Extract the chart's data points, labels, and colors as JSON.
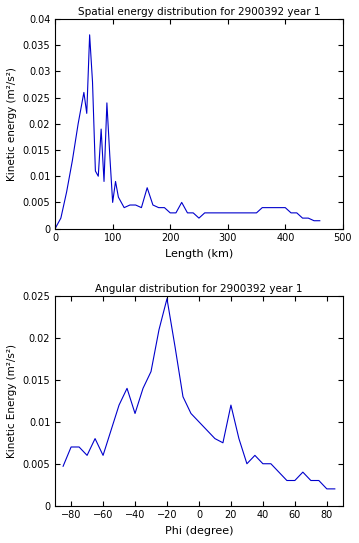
{
  "title1": "Spatial energy distribution for 2900392 year 1",
  "title2": "Angular distribution for 2900392 year 1",
  "xlabel1": "Length (km)",
  "ylabel1": "Kinetic energy (m²/s²)",
  "xlabel2": "Phi (degree)",
  "ylabel2": "Kinetic Energy (m²/s²)",
  "spatial_x": [
    0,
    10,
    20,
    30,
    40,
    50,
    55,
    60,
    65,
    70,
    75,
    80,
    85,
    90,
    95,
    100,
    105,
    110,
    115,
    120,
    130,
    140,
    150,
    160,
    170,
    180,
    190,
    200,
    210,
    220,
    230,
    240,
    250,
    260,
    270,
    280,
    290,
    300,
    310,
    320,
    330,
    340,
    350,
    360,
    370,
    380,
    390,
    400,
    410,
    420,
    430,
    440,
    450,
    460
  ],
  "spatial_y": [
    0.0,
    0.002,
    0.007,
    0.013,
    0.02,
    0.026,
    0.022,
    0.037,
    0.028,
    0.011,
    0.01,
    0.019,
    0.009,
    0.024,
    0.014,
    0.005,
    0.009,
    0.006,
    0.005,
    0.004,
    0.0045,
    0.0045,
    0.004,
    0.0078,
    0.0045,
    0.004,
    0.004,
    0.003,
    0.003,
    0.005,
    0.003,
    0.003,
    0.002,
    0.003,
    0.003,
    0.003,
    0.003,
    0.003,
    0.003,
    0.003,
    0.003,
    0.003,
    0.003,
    0.004,
    0.004,
    0.004,
    0.004,
    0.004,
    0.003,
    0.003,
    0.002,
    0.002,
    0.0015,
    0.0015
  ],
  "angular_x": [
    -85,
    -80,
    -75,
    -70,
    -65,
    -60,
    -55,
    -50,
    -45,
    -40,
    -35,
    -30,
    -25,
    -20,
    -15,
    -10,
    -5,
    0,
    5,
    10,
    15,
    20,
    25,
    30,
    35,
    40,
    45,
    50,
    55,
    60,
    65,
    70,
    75,
    80,
    85
  ],
  "angular_y": [
    0.0047,
    0.007,
    0.007,
    0.006,
    0.008,
    0.006,
    0.009,
    0.012,
    0.014,
    0.011,
    0.014,
    0.016,
    0.021,
    0.0247,
    0.019,
    0.013,
    0.011,
    0.01,
    0.009,
    0.008,
    0.0075,
    0.012,
    0.008,
    0.005,
    0.006,
    0.005,
    0.005,
    0.004,
    0.003,
    0.003,
    0.004,
    0.003,
    0.003,
    0.002,
    0.002
  ],
  "line_color": "#0000cc",
  "ylim1": [
    0,
    0.04
  ],
  "xlim1": [
    0,
    500
  ],
  "ylim2": [
    0,
    0.025
  ],
  "xlim2": [
    -90,
    90
  ],
  "bg_color": "#ffffff"
}
